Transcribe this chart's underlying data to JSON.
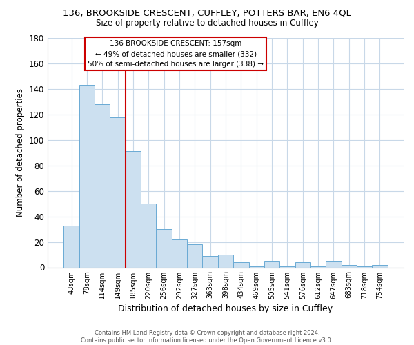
{
  "title": "136, BROOKSIDE CRESCENT, CUFFLEY, POTTERS BAR, EN6 4QL",
  "subtitle": "Size of property relative to detached houses in Cuffley",
  "xlabel": "Distribution of detached houses by size in Cuffley",
  "ylabel": "Number of detached properties",
  "bar_labels": [
    "43sqm",
    "78sqm",
    "114sqm",
    "149sqm",
    "185sqm",
    "220sqm",
    "256sqm",
    "292sqm",
    "327sqm",
    "363sqm",
    "398sqm",
    "434sqm",
    "469sqm",
    "505sqm",
    "541sqm",
    "576sqm",
    "612sqm",
    "647sqm",
    "683sqm",
    "718sqm",
    "754sqm"
  ],
  "bar_values": [
    33,
    143,
    128,
    118,
    91,
    50,
    30,
    22,
    18,
    9,
    10,
    4,
    1,
    5,
    1,
    4,
    1,
    5,
    2,
    1,
    2
  ],
  "bar_color": "#cce0f0",
  "bar_edge_color": "#6aaad4",
  "vline_x": 3.5,
  "vline_color": "#cc0000",
  "ylim": [
    0,
    180
  ],
  "yticks": [
    0,
    20,
    40,
    60,
    80,
    100,
    120,
    140,
    160,
    180
  ],
  "annotation_title": "136 BROOKSIDE CRESCENT: 157sqm",
  "annotation_line1": "← 49% of detached houses are smaller (332)",
  "annotation_line2": "50% of semi-detached houses are larger (338) →",
  "annotation_box_color": "#ffffff",
  "annotation_box_edge": "#cc0000",
  "footer_line1": "Contains HM Land Registry data © Crown copyright and database right 2024.",
  "footer_line2": "Contains public sector information licensed under the Open Government Licence v3.0.",
  "background_color": "#ffffff",
  "grid_color": "#c8d8e8"
}
